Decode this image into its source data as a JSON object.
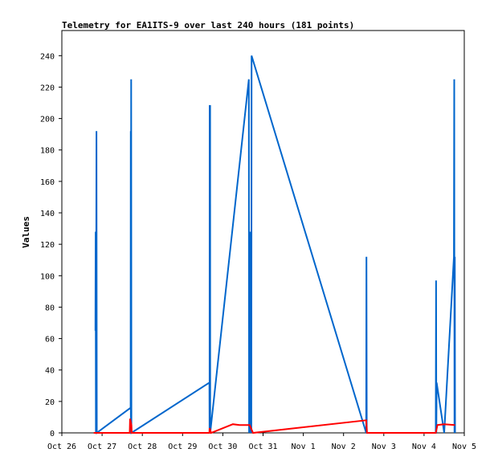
{
  "chart_data": {
    "type": "line",
    "title": "Telemetry for EA1ITS-9 over last 240 hours (181 points)",
    "xlabel": "",
    "ylabel": "Values",
    "xlim": [
      "2023-10-26",
      "2023-11-05"
    ],
    "ylim": [
      0,
      256
    ],
    "x_tick_labels": [
      "Oct 26",
      "Oct 27",
      "Oct 28",
      "Oct 29",
      "Oct 30",
      "Oct 31",
      "Nov 1",
      "Nov 2",
      "Nov 3",
      "Nov 4",
      "Nov 5"
    ],
    "y_ticks": [
      0,
      20,
      40,
      60,
      80,
      100,
      120,
      140,
      160,
      180,
      200,
      220,
      240
    ],
    "grid": false,
    "legend": "none",
    "series": [
      {
        "color": "#0066cc",
        "points": [
          [
            "2023-10-26T20:00",
            65
          ],
          [
            "2023-10-26T20:10",
            128
          ],
          [
            "2023-10-26T20:20",
            0
          ],
          [
            "2023-10-26T20:40",
            192
          ],
          [
            "2023-10-26T20:50",
            0
          ],
          [
            "2023-10-27T17:00",
            16
          ],
          [
            "2023-10-27T17:05",
            192
          ],
          [
            "2023-10-27T17:10",
            0
          ],
          [
            "2023-10-27T17:20",
            225
          ],
          [
            "2023-10-27T17:30",
            0
          ],
          [
            "2023-10-29T16:00",
            32
          ],
          [
            "2023-10-29T16:05",
            0
          ],
          [
            "2023-10-29T16:10",
            208
          ],
          [
            "2023-10-29T16:25",
            208
          ],
          [
            "2023-10-29T16:30",
            0
          ],
          [
            "2023-10-30T15:30",
            225
          ],
          [
            "2023-10-30T15:40",
            0
          ],
          [
            "2023-10-30T16:10",
            128
          ],
          [
            "2023-10-30T16:20",
            0
          ],
          [
            "2023-10-30T16:50",
            97
          ],
          [
            "2023-10-30T17:00",
            0
          ],
          [
            "2023-10-30T17:10",
            240
          ],
          [
            "2023-11-02T13:30",
            0
          ],
          [
            "2023-11-02T13:40",
            112
          ],
          [
            "2023-11-02T13:50",
            0
          ],
          [
            "2023-11-04T07:00",
            0
          ],
          [
            "2023-11-04T07:10",
            97
          ],
          [
            "2023-11-04T07:20",
            0
          ],
          [
            "2023-11-04T07:30",
            32
          ],
          [
            "2023-11-04T12:00",
            0
          ],
          [
            "2023-11-04T17:50",
            112
          ],
          [
            "2023-11-04T18:00",
            225
          ],
          [
            "2023-11-04T18:10",
            0
          ],
          [
            "2023-11-04T18:20",
            112
          ],
          [
            "2023-11-04T18:30",
            0
          ]
        ]
      },
      {
        "color": "#ff0000",
        "points": [
          [
            "2023-10-26T19:00",
            0
          ],
          [
            "2023-10-27T16:30",
            0
          ],
          [
            "2023-10-27T16:40",
            9
          ],
          [
            "2023-10-27T17:30",
            5
          ],
          [
            "2023-10-27T17:40",
            0
          ],
          [
            "2023-10-29T16:00",
            0
          ],
          [
            "2023-10-29T16:10",
            3
          ],
          [
            "2023-10-29T17:00",
            0
          ],
          [
            "2023-10-30T06:00",
            5.5
          ],
          [
            "2023-10-30T10:00",
            5
          ],
          [
            "2023-10-30T16:00",
            5
          ],
          [
            "2023-10-30T18:00",
            0
          ],
          [
            "2023-11-02T13:30",
            8
          ],
          [
            "2023-11-02T14:00",
            0
          ],
          [
            "2023-11-04T07:00",
            0
          ],
          [
            "2023-11-04T08:00",
            5
          ],
          [
            "2023-11-04T12:00",
            5.5
          ],
          [
            "2023-11-04T18:30",
            5
          ]
        ]
      }
    ]
  }
}
